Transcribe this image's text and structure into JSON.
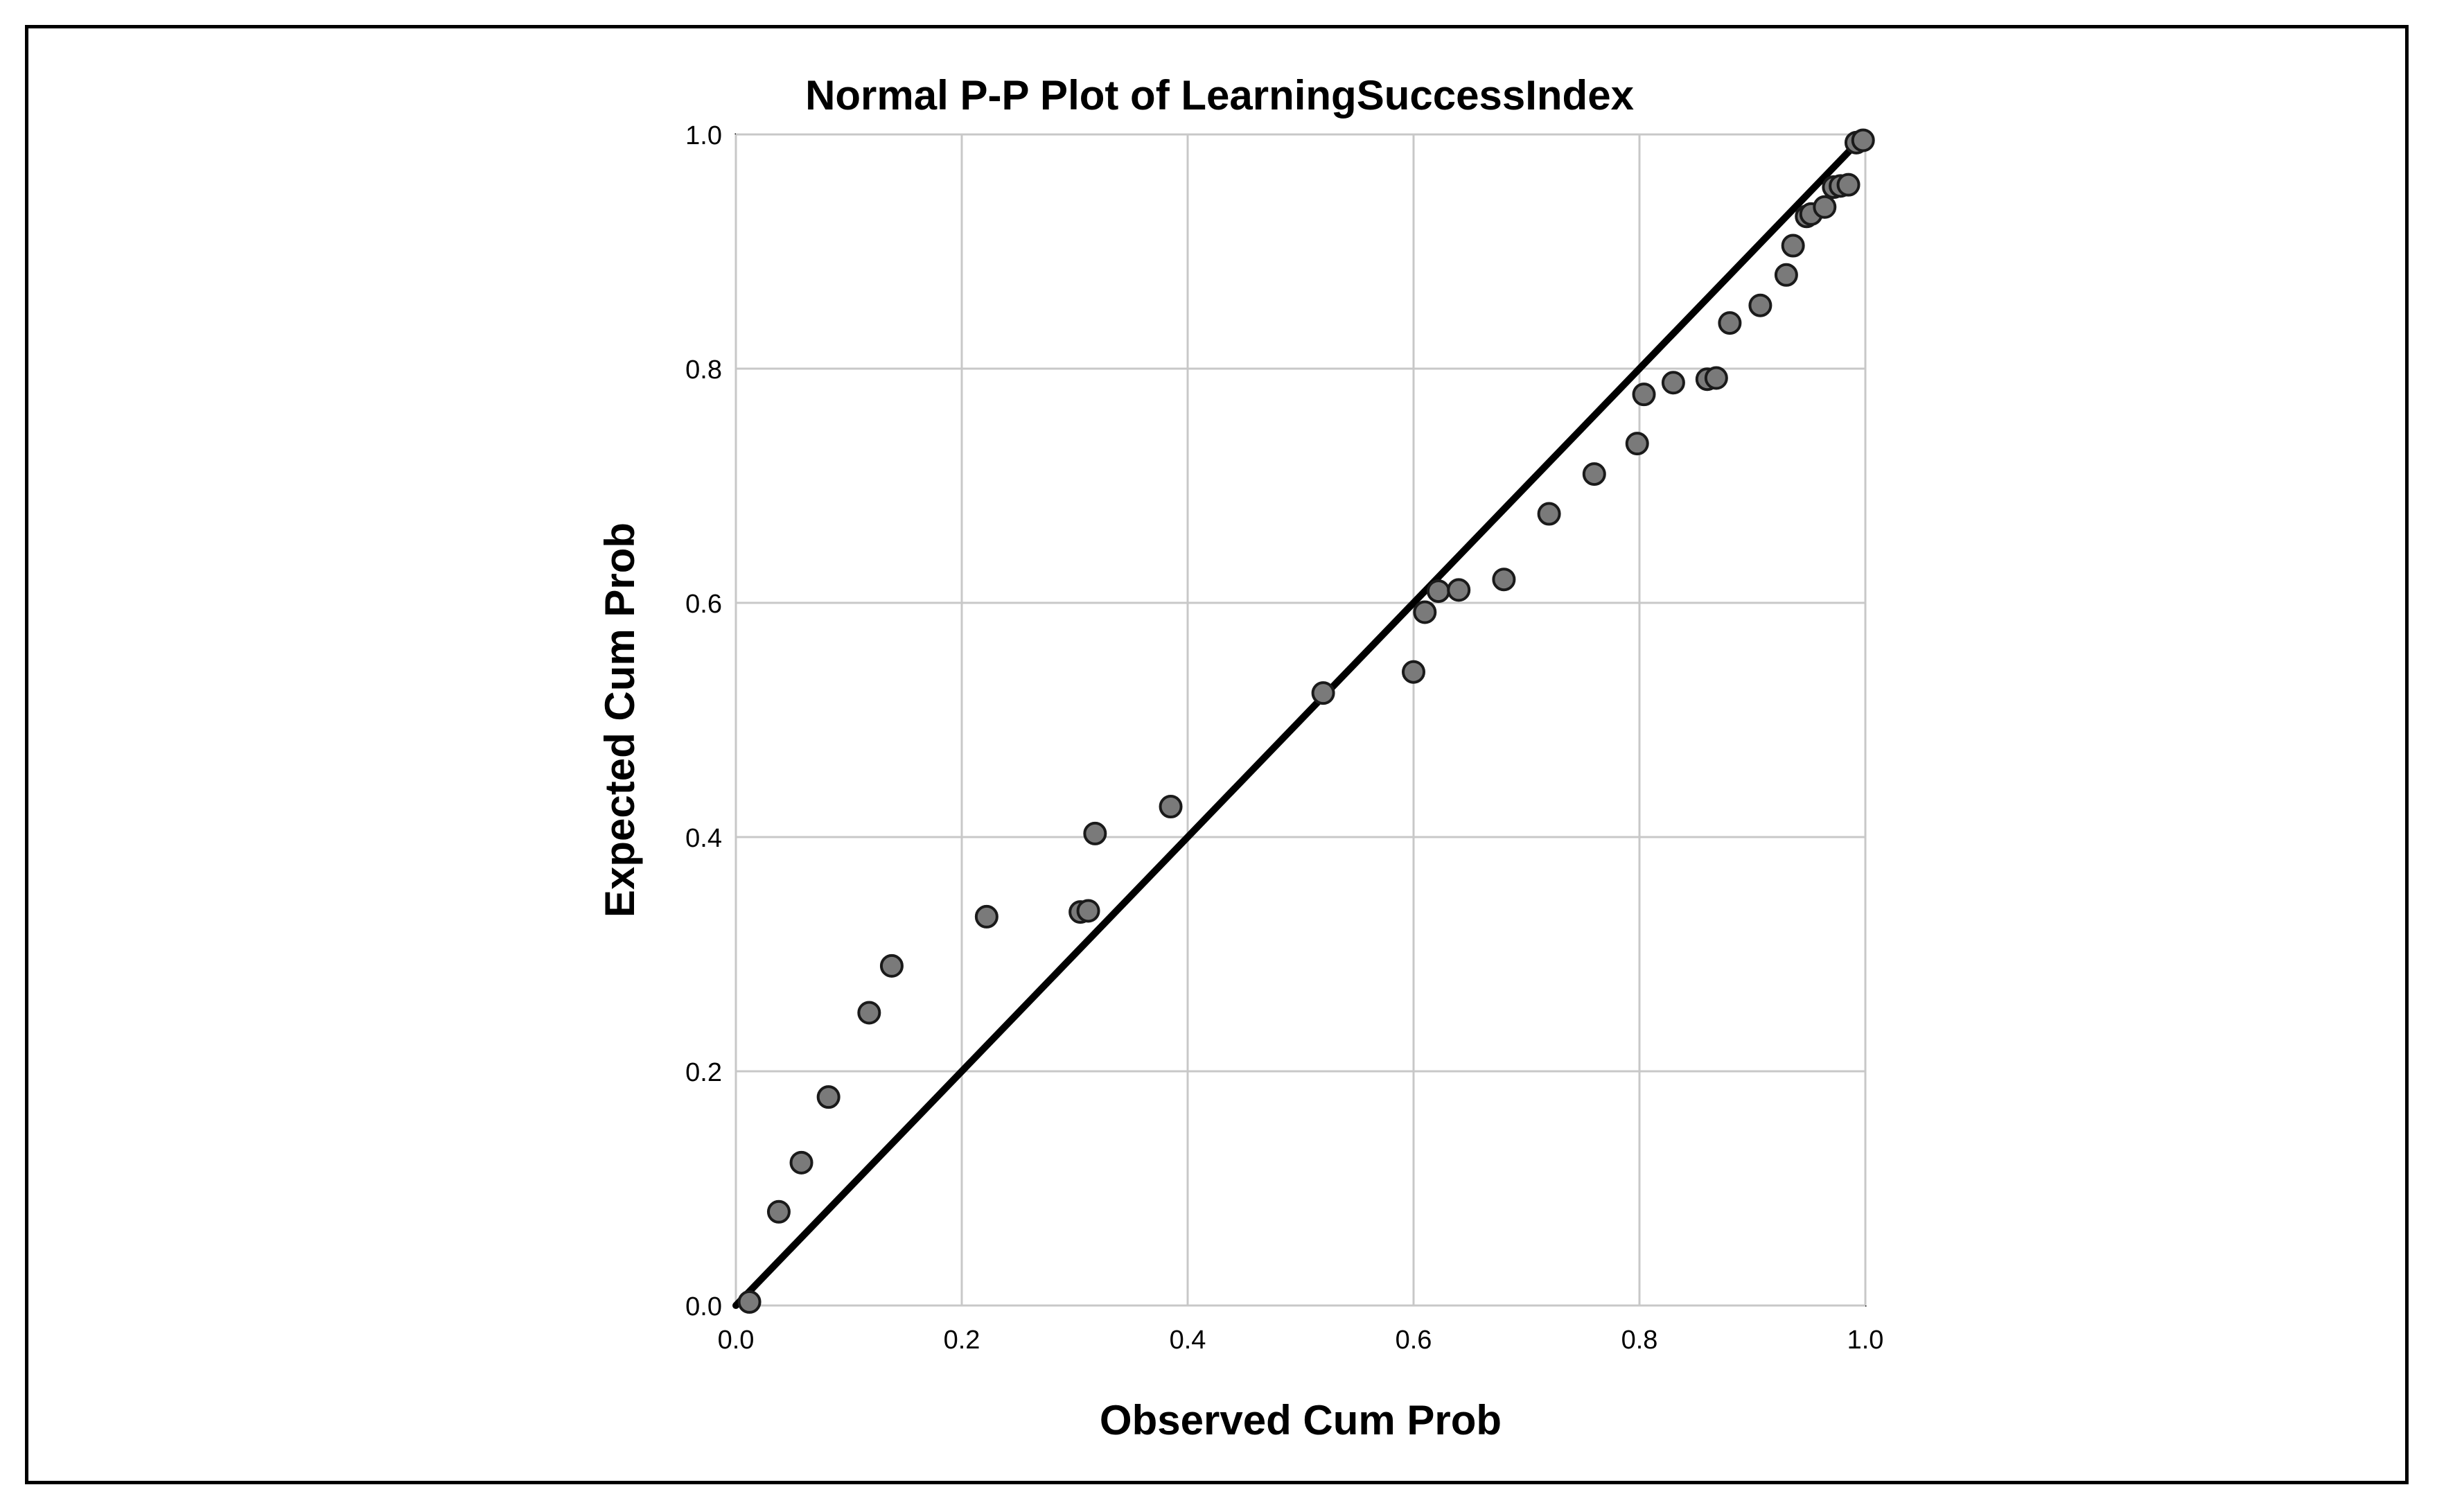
{
  "chart_data": {
    "type": "scatter",
    "title": "Normal P-P Plot of LearningSuccessIndex",
    "xlabel": "Observed Cum Prob",
    "ylabel": "Expected Cum Prob",
    "xlim": [
      0.0,
      1.0
    ],
    "ylim": [
      0.0,
      1.0
    ],
    "xticks": [
      "0.0",
      "0.2",
      "0.4",
      "0.6",
      "0.8",
      "1.0"
    ],
    "yticks": [
      "0.0",
      "0.2",
      "0.4",
      "0.6",
      "0.8",
      "1.0"
    ],
    "grid": true,
    "reference_line": {
      "x": [
        0.0,
        1.0
      ],
      "y": [
        0.0,
        1.0
      ]
    },
    "point_color": "#7a7a7a",
    "points": [
      {
        "x": 0.012,
        "y": 0.003
      },
      {
        "x": 0.038,
        "y": 0.08
      },
      {
        "x": 0.058,
        "y": 0.122
      },
      {
        "x": 0.082,
        "y": 0.178
      },
      {
        "x": 0.118,
        "y": 0.25
      },
      {
        "x": 0.138,
        "y": 0.29
      },
      {
        "x": 0.222,
        "y": 0.332
      },
      {
        "x": 0.305,
        "y": 0.336
      },
      {
        "x": 0.312,
        "y": 0.337
      },
      {
        "x": 0.318,
        "y": 0.403
      },
      {
        "x": 0.385,
        "y": 0.426
      },
      {
        "x": 0.52,
        "y": 0.523
      },
      {
        "x": 0.6,
        "y": 0.541
      },
      {
        "x": 0.61,
        "y": 0.592
      },
      {
        "x": 0.622,
        "y": 0.61
      },
      {
        "x": 0.64,
        "y": 0.611
      },
      {
        "x": 0.68,
        "y": 0.62
      },
      {
        "x": 0.72,
        "y": 0.676
      },
      {
        "x": 0.76,
        "y": 0.71
      },
      {
        "x": 0.798,
        "y": 0.736
      },
      {
        "x": 0.804,
        "y": 0.778
      },
      {
        "x": 0.83,
        "y": 0.788
      },
      {
        "x": 0.86,
        "y": 0.791
      },
      {
        "x": 0.868,
        "y": 0.792
      },
      {
        "x": 0.88,
        "y": 0.839
      },
      {
        "x": 0.907,
        "y": 0.854
      },
      {
        "x": 0.93,
        "y": 0.88
      },
      {
        "x": 0.936,
        "y": 0.905
      },
      {
        "x": 0.948,
        "y": 0.93
      },
      {
        "x": 0.952,
        "y": 0.932
      },
      {
        "x": 0.964,
        "y": 0.938
      },
      {
        "x": 0.972,
        "y": 0.955
      },
      {
        "x": 0.978,
        "y": 0.956
      },
      {
        "x": 0.985,
        "y": 0.957
      },
      {
        "x": 0.992,
        "y": 0.993
      },
      {
        "x": 0.998,
        "y": 0.995
      }
    ]
  }
}
